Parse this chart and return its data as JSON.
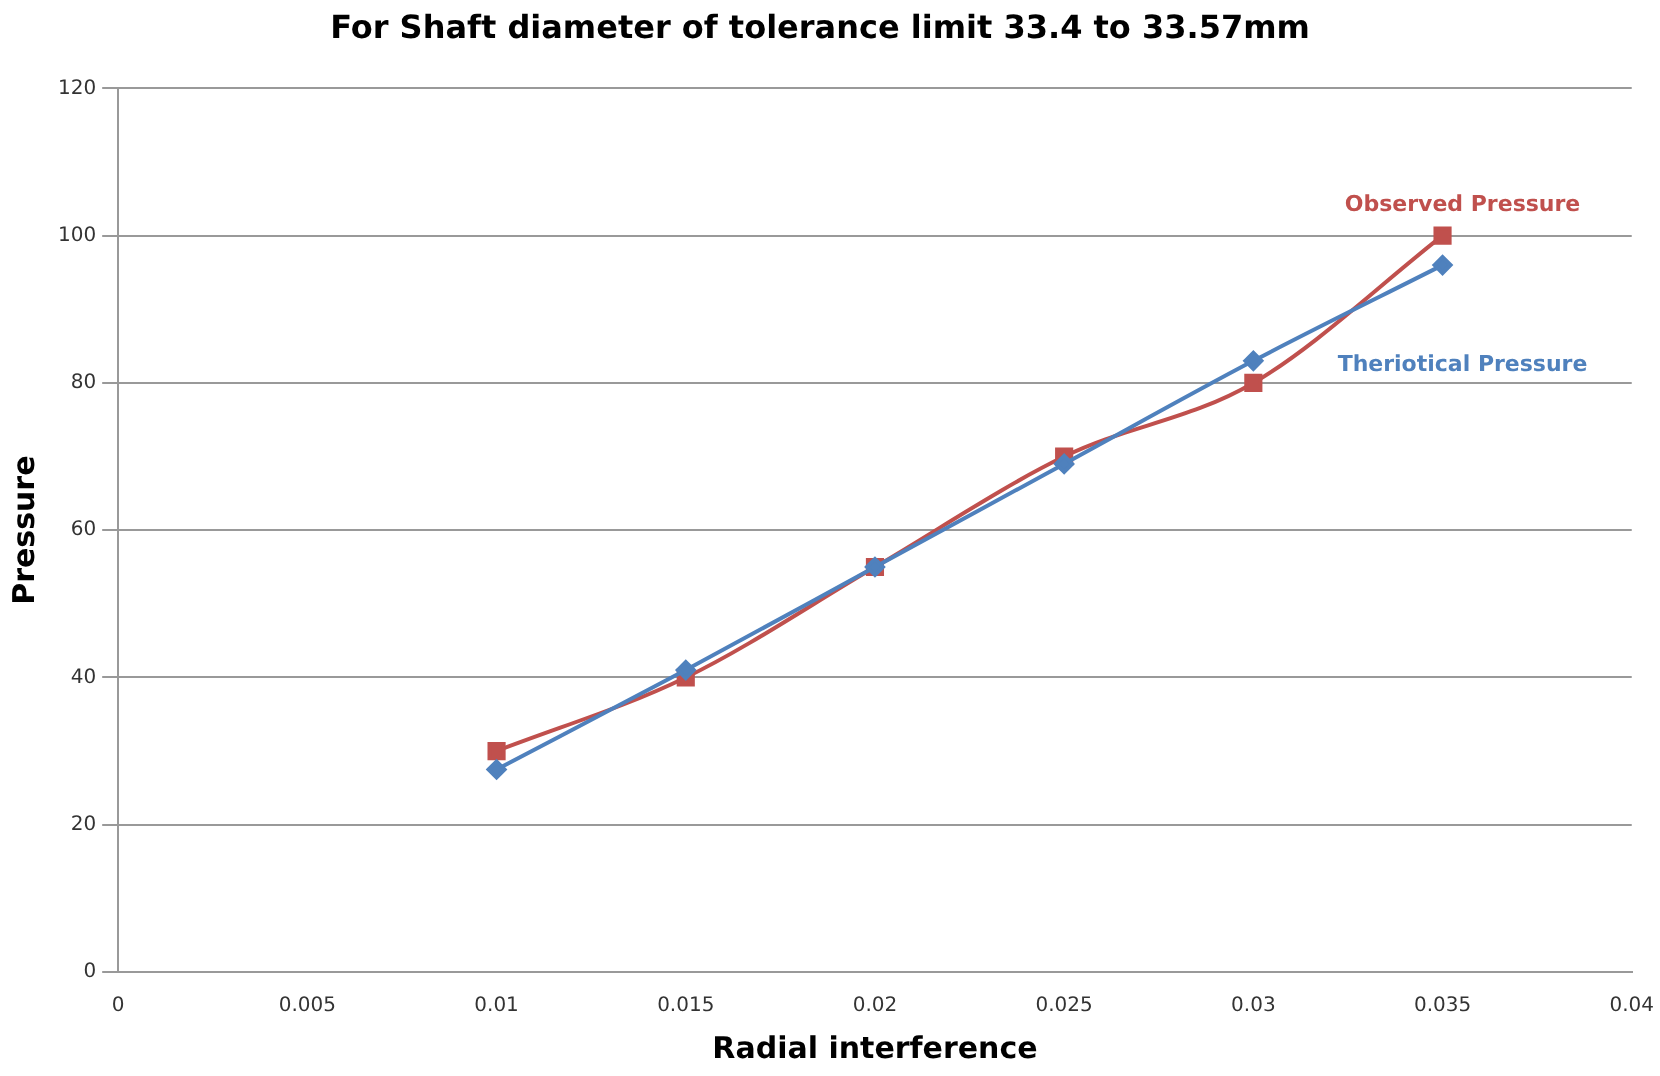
{
  "chart_data": {
    "type": "line",
    "title": "For Shaft diameter of tolerance limit 33.4 to 33.57mm",
    "xlabel": "Radial interference",
    "ylabel": "Pressure",
    "x": [
      0.01,
      0.015,
      0.02,
      0.025,
      0.03,
      0.035
    ],
    "series": [
      {
        "name": "Theriotical Pressure",
        "color": "#4f81bd",
        "marker": "diamond",
        "values": [
          27.5,
          41,
          55,
          69,
          83,
          96
        ]
      },
      {
        "name": "Observed Pressure",
        "color": "#c0504d",
        "marker": "square",
        "values": [
          30,
          40,
          55,
          70,
          80,
          100
        ]
      }
    ],
    "xlim": [
      0,
      0.04
    ],
    "xticks": [
      0,
      0.005,
      0.01,
      0.015,
      0.02,
      0.025,
      0.03,
      0.035,
      0.04
    ],
    "ylim": [
      0,
      120
    ],
    "yticks": [
      0,
      20,
      40,
      60,
      80,
      100,
      120
    ],
    "grid": "y",
    "legend": false
  }
}
